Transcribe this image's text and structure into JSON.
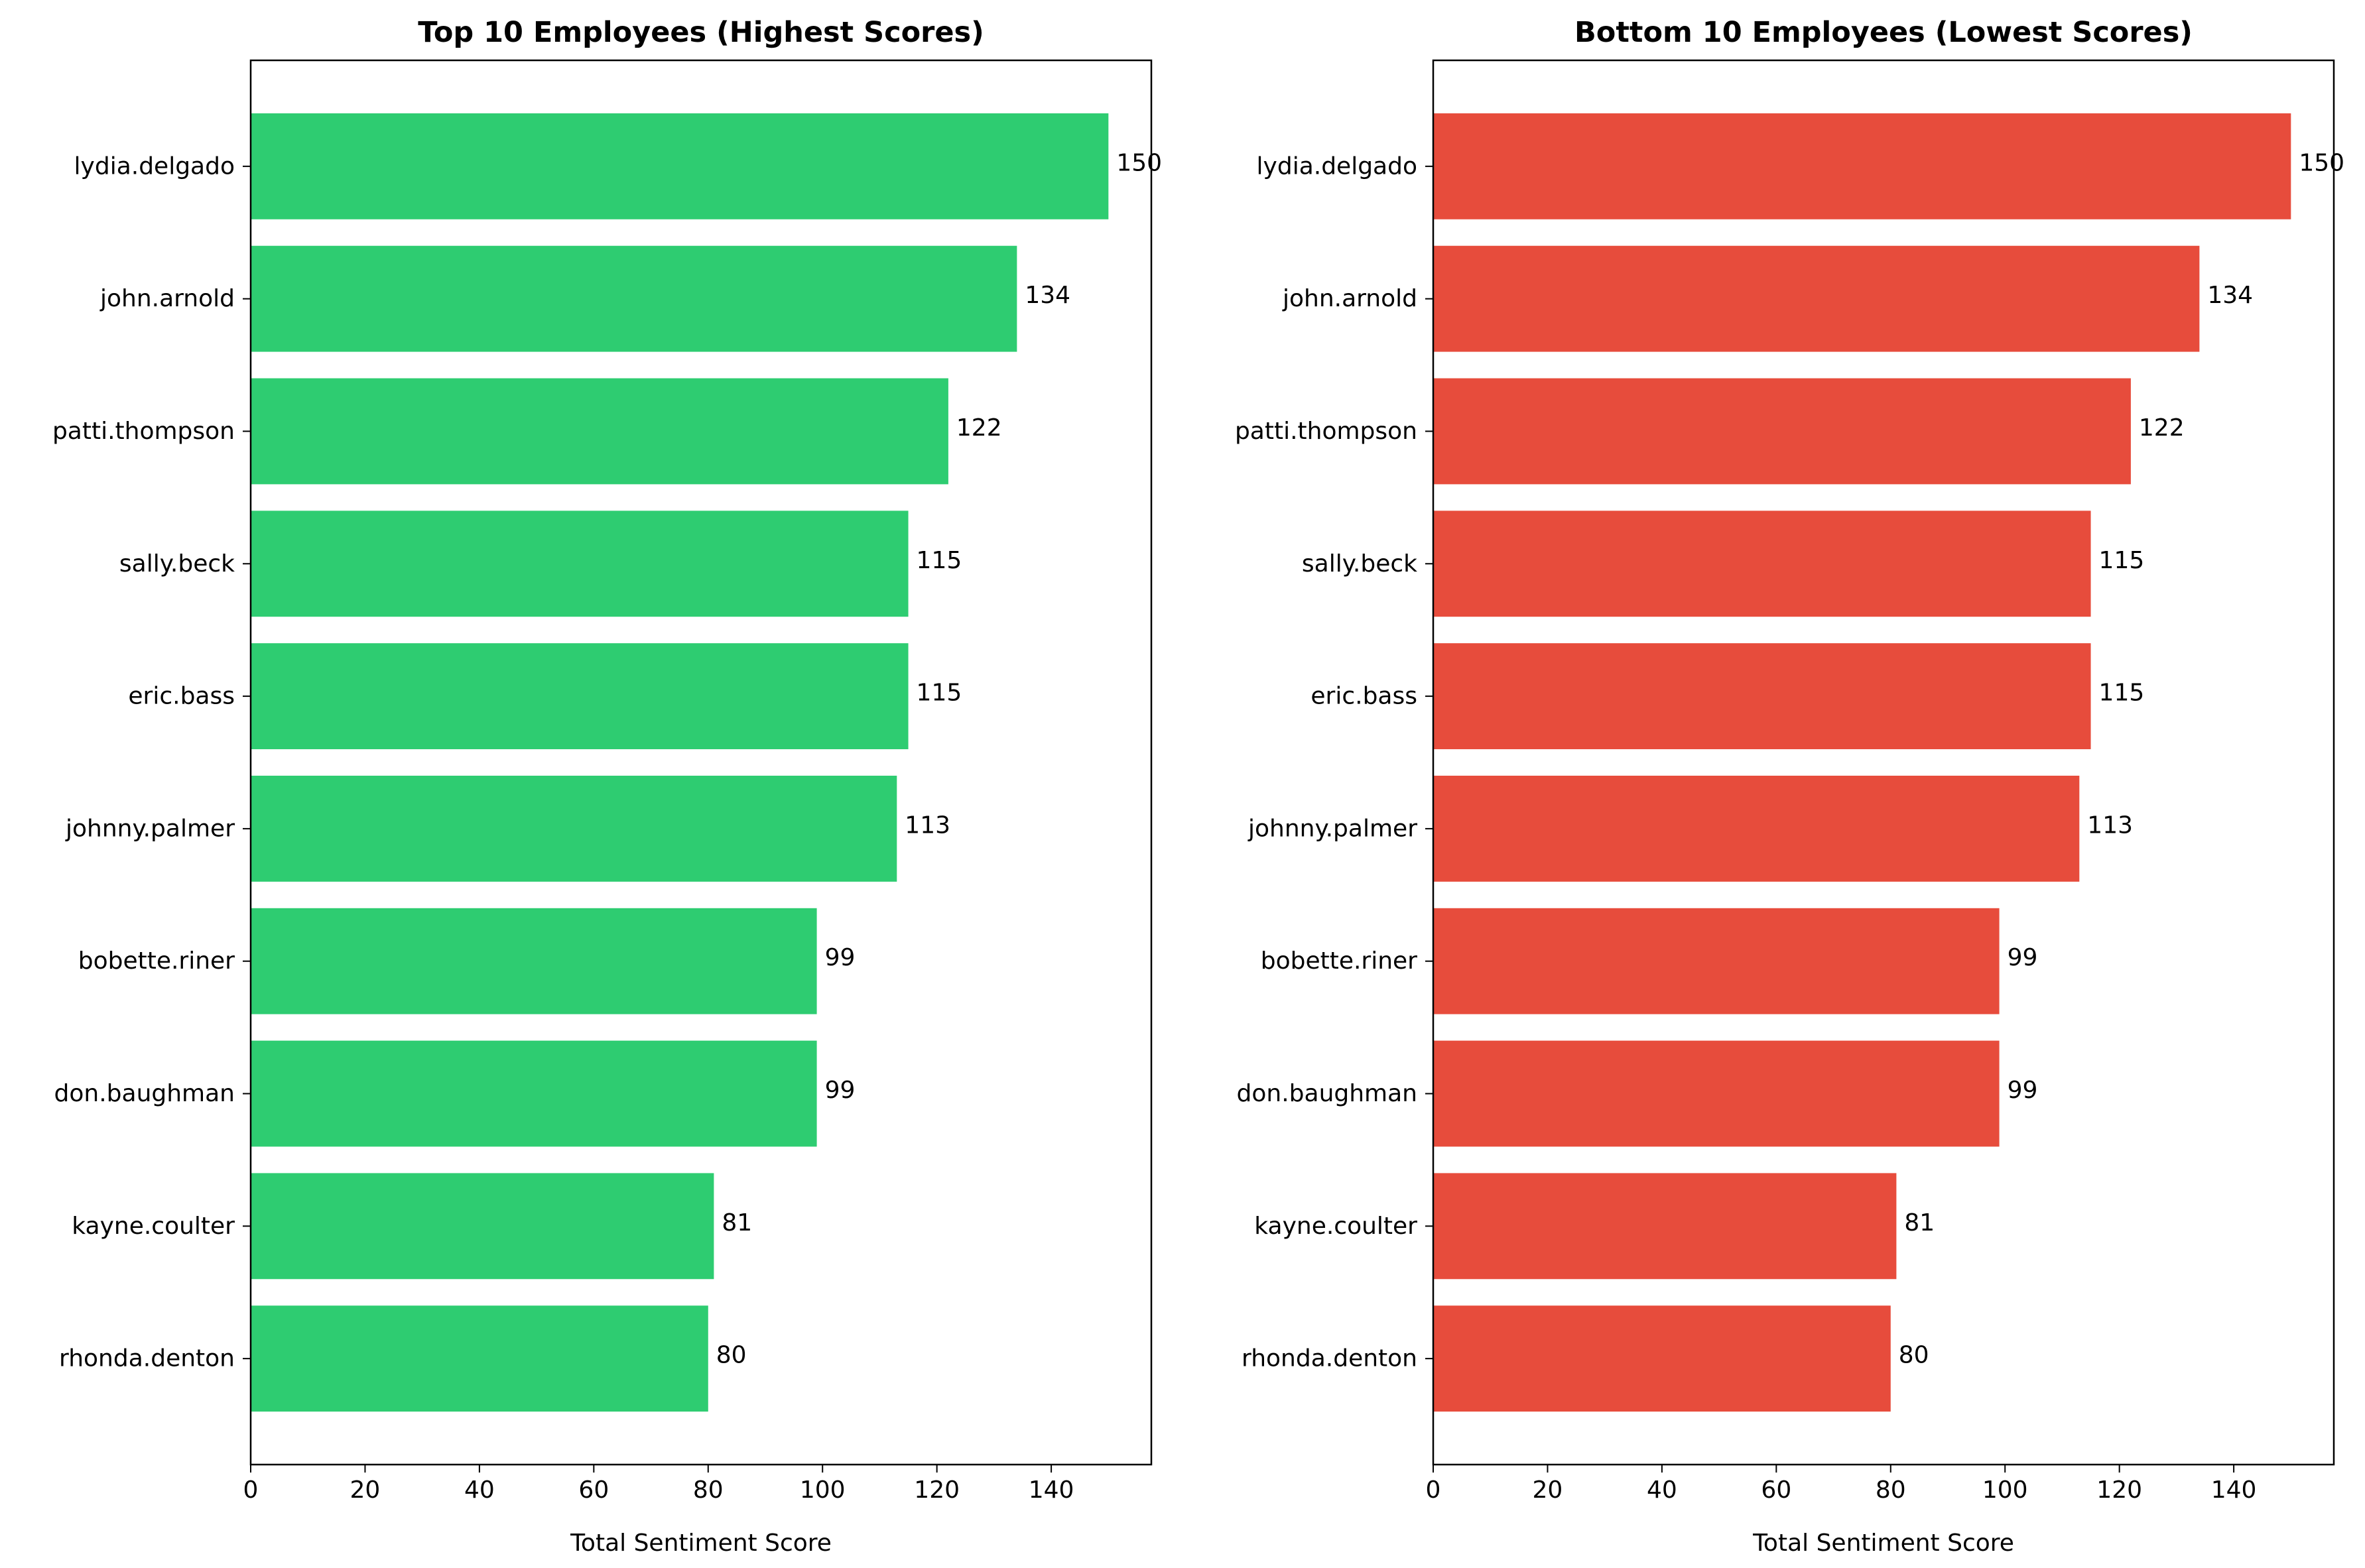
{
  "chart_data": [
    {
      "type": "bar",
      "orientation": "horizontal",
      "title": "Top 10 Employees (Highest Scores)",
      "xlabel": "Total Sentiment Score",
      "ylabel": "",
      "color": "#2ecc71",
      "categories": [
        "lydia.delgado",
        "john.arnold",
        "patti.thompson",
        "sally.beck",
        "eric.bass",
        "johnny.palmer",
        "bobette.riner",
        "don.baughman",
        "kayne.coulter",
        "rhonda.denton"
      ],
      "values": [
        150,
        134,
        122,
        115,
        115,
        113,
        99,
        99,
        81,
        80
      ],
      "value_labels": [
        "150",
        "134",
        "122",
        "115",
        "115",
        "113",
        "99",
        "99",
        "81",
        "80"
      ],
      "xlim": [
        0,
        157.5
      ],
      "xticks": [
        0,
        20,
        40,
        60,
        80,
        100,
        120,
        140
      ],
      "xtick_labels": [
        "0",
        "20",
        "40",
        "60",
        "80",
        "100",
        "120",
        "140"
      ],
      "grid": false,
      "legend": "none"
    },
    {
      "type": "bar",
      "orientation": "horizontal",
      "title": "Bottom 10 Employees (Lowest Scores)",
      "xlabel": "Total Sentiment Score",
      "ylabel": "",
      "color": "#e74c3c",
      "categories": [
        "lydia.delgado",
        "john.arnold",
        "patti.thompson",
        "sally.beck",
        "eric.bass",
        "johnny.palmer",
        "bobette.riner",
        "don.baughman",
        "kayne.coulter",
        "rhonda.denton"
      ],
      "values": [
        150,
        134,
        122,
        115,
        115,
        113,
        99,
        99,
        81,
        80
      ],
      "value_labels": [
        "150",
        "134",
        "122",
        "115",
        "115",
        "113",
        "99",
        "99",
        "81",
        "80"
      ],
      "xlim": [
        0,
        157.5
      ],
      "xticks": [
        0,
        20,
        40,
        60,
        80,
        100,
        120,
        140
      ],
      "xtick_labels": [
        "0",
        "20",
        "40",
        "60",
        "80",
        "100",
        "120",
        "140"
      ],
      "grid": false,
      "legend": "none"
    }
  ]
}
